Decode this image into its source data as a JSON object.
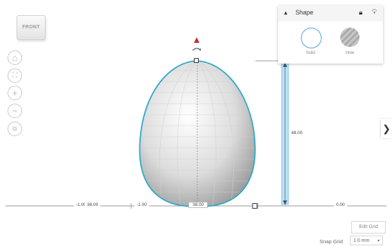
{
  "view_cube": {
    "label": "FRONT"
  },
  "nav_controls": {
    "home_icon": "home-icon",
    "fit_icon": "fit-view-icon",
    "zoom_in_icon": "zoom-in-icon",
    "zoom_out_icon": "zoom-out-icon",
    "projection_icon": "perspective-cube-icon"
  },
  "inspector": {
    "title": "Shape",
    "options": [
      {
        "label": "Solid",
        "selected": true
      },
      {
        "label": "Hole",
        "selected": false
      }
    ]
  },
  "dimensions": {
    "height": "48.00",
    "left_offset": "-1.00",
    "width_left": "38.00",
    "width_inner": "-1.00",
    "width_bottom": "38.00",
    "right_offset": "0.00"
  },
  "grid_controls": {
    "edit_grid_label": "Edit Grid",
    "snap_grid_label": "Snap Grid",
    "snap_grid_value": "1.0 mm"
  },
  "colors": {
    "selection_outline": "#2aa8c9",
    "handle_arrow": "#b8322c",
    "height_bar": "#bfe0f2"
  }
}
